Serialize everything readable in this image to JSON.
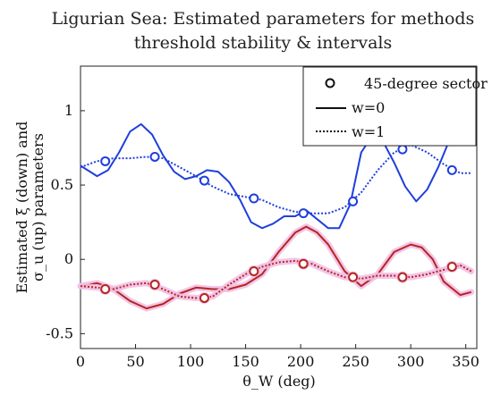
{
  "chart_data": {
    "type": "line",
    "title": [
      "Ligurian Sea: Estimated parameters for methods",
      "threshold stability & intervals"
    ],
    "xlabel": "θ_W (deg)",
    "ylabel": [
      "Estimated  ξ (down) and",
      "σ_u  (up) parameters"
    ],
    "xlim": [
      0,
      360
    ],
    "ylim": [
      -0.6,
      1.3
    ],
    "xticks": [
      0,
      50,
      100,
      150,
      200,
      250,
      300,
      350
    ],
    "yticks": [
      -0.5,
      0,
      0.5,
      1
    ],
    "ytick_labels": [
      "-0.5",
      "0",
      "0.5",
      "1"
    ],
    "grid": false,
    "legend_position": "top-right",
    "legend": [
      {
        "label": "45-degree sector",
        "style": "marker"
      },
      {
        "label": "w=0",
        "style": "solid"
      },
      {
        "label": "w=1",
        "style": "dotted"
      }
    ],
    "colors": {
      "sigma": "#1f3fdc",
      "xi": "#b5261f",
      "xi_halo": "#f2bfe6",
      "black": "#111111"
    },
    "series": [
      {
        "group": "sigma",
        "style": "solid",
        "x": [
          0,
          15,
          25,
          35,
          45,
          55,
          65,
          75,
          85,
          95,
          105,
          115,
          125,
          135,
          145,
          155,
          165,
          175,
          185,
          195,
          205,
          215,
          225,
          235,
          245,
          255,
          265,
          275,
          285,
          295,
          305,
          315,
          325,
          335,
          345,
          355
        ],
        "y": [
          0.63,
          0.56,
          0.6,
          0.72,
          0.86,
          0.91,
          0.84,
          0.7,
          0.59,
          0.54,
          0.56,
          0.6,
          0.59,
          0.52,
          0.4,
          0.25,
          0.21,
          0.24,
          0.29,
          0.29,
          0.33,
          0.27,
          0.21,
          0.21,
          0.37,
          0.72,
          0.83,
          0.79,
          0.65,
          0.49,
          0.39,
          0.47,
          0.62,
          0.8,
          0.85,
          0.77
        ]
      },
      {
        "group": "sigma",
        "style": "dotted",
        "x": [
          0,
          15,
          30,
          45,
          60,
          75,
          90,
          105,
          120,
          135,
          150,
          165,
          180,
          195,
          210,
          225,
          240,
          255,
          270,
          285,
          300,
          315,
          330,
          345,
          355
        ],
        "y": [
          0.62,
          0.66,
          0.68,
          0.68,
          0.69,
          0.68,
          0.62,
          0.56,
          0.49,
          0.44,
          0.42,
          0.4,
          0.35,
          0.32,
          0.31,
          0.31,
          0.35,
          0.45,
          0.6,
          0.72,
          0.77,
          0.72,
          0.64,
          0.58,
          0.58
        ]
      },
      {
        "group": "xi",
        "style": "solid",
        "x": [
          0,
          15,
          30,
          45,
          60,
          75,
          90,
          105,
          120,
          135,
          150,
          165,
          180,
          195,
          205,
          215,
          225,
          240,
          255,
          270,
          285,
          300,
          310,
          320,
          330,
          345,
          355
        ],
        "y": [
          -0.18,
          -0.16,
          -0.2,
          -0.28,
          -0.33,
          -0.3,
          -0.23,
          -0.19,
          -0.2,
          -0.2,
          -0.17,
          -0.1,
          0.05,
          0.18,
          0.22,
          0.18,
          0.1,
          -0.08,
          -0.18,
          -0.1,
          0.05,
          0.1,
          0.08,
          0.0,
          -0.15,
          -0.24,
          -0.22
        ]
      },
      {
        "group": "xi",
        "style": "dotted",
        "x": [
          0,
          15,
          30,
          45,
          60,
          75,
          90,
          105,
          120,
          135,
          150,
          165,
          180,
          195,
          210,
          225,
          240,
          255,
          270,
          285,
          300,
          315,
          330,
          345,
          355
        ],
        "y": [
          -0.18,
          -0.19,
          -0.2,
          -0.17,
          -0.16,
          -0.2,
          -0.25,
          -0.26,
          -0.25,
          -0.17,
          -0.1,
          -0.05,
          -0.02,
          -0.01,
          -0.03,
          -0.08,
          -0.12,
          -0.13,
          -0.11,
          -0.11,
          -0.12,
          -0.1,
          -0.07,
          -0.04,
          -0.08
        ]
      }
    ],
    "sector_markers": {
      "x": [
        22.5,
        67.5,
        112.5,
        157.5,
        202.5,
        247.5,
        292.5,
        337.5
      ],
      "sigma": [
        0.66,
        0.69,
        0.53,
        0.41,
        0.31,
        0.39,
        0.74,
        0.6
      ],
      "xi": [
        -0.2,
        -0.17,
        -0.26,
        -0.08,
        -0.03,
        -0.12,
        -0.12,
        -0.05
      ]
    }
  }
}
